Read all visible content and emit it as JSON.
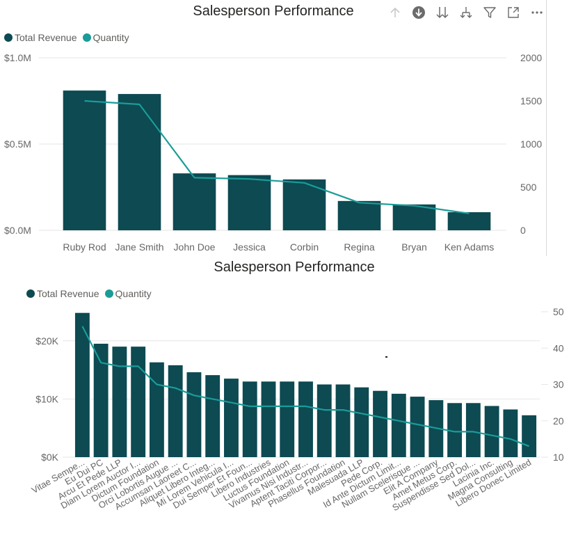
{
  "colors": {
    "bar": "#0d4a52",
    "line": "#1a9c98",
    "grid": "#e6e6e6",
    "axis_text": "#666666",
    "title": "#252423"
  },
  "toolbar": {
    "icons": [
      "drill-up-icon",
      "drill-down-on-icon",
      "expand-all-icon",
      "expand-next-level-icon",
      "filter-icon",
      "focus-mode-icon",
      "more-options-icon"
    ]
  },
  "chart_data": [
    {
      "type": "bar",
      "title": "Salesperson Performance",
      "legend": [
        "Total Revenue",
        "Quantity"
      ],
      "legend_position": "top-left",
      "categories": [
        "Ruby Rod",
        "Jane Smith",
        "John Doe",
        "Jessica",
        "Corbin",
        "Regina",
        "Bryan",
        "Ken Adams"
      ],
      "series": [
        {
          "name": "Total Revenue",
          "kind": "bar",
          "axis": "left",
          "values": [
            810000,
            790000,
            330000,
            320000,
            295000,
            170000,
            150000,
            105000
          ]
        },
        {
          "name": "Quantity",
          "kind": "line",
          "axis": "right",
          "values": [
            1500,
            1460,
            610,
            595,
            550,
            320,
            285,
            195
          ]
        }
      ],
      "y_left": {
        "ylim": [
          0,
          1000000
        ],
        "ticks": [
          0,
          500000,
          1000000
        ],
        "tick_labels": [
          "$0.0M",
          "$0.5M",
          "$1.0M"
        ]
      },
      "y_right": {
        "ylim": [
          0,
          2000
        ],
        "ticks": [
          0,
          500,
          1000,
          1500,
          2000
        ],
        "tick_labels": [
          "0",
          "500",
          "1000",
          "1500",
          "2000"
        ]
      },
      "grid": true
    },
    {
      "type": "bar",
      "title": "Salesperson Performance",
      "legend": [
        "Total Revenue",
        "Quantity"
      ],
      "legend_position": "top-left",
      "categories": [
        "Vitae Sempe...",
        "Eu Dui PC",
        "Arcu Et Pede LLP",
        "Diam Lorem Auctor I...",
        "Dictum Foundation",
        "Orci Lobortis Augue ...",
        "Accumsan Laoreet C...",
        "Aliquet Libero Integ...",
        "Mi Lorem Vehicula I...",
        "Dui Semper Et Foun...",
        "Libero Industries",
        "Luctus Foundation",
        "Vivamus Nisi Industr...",
        "Aptent Taciti Corpor...",
        "Phasellus Foundation",
        "Malesuada LLP",
        "Pede Corp.",
        "Id Ante Dictum Limit...",
        "Nullam Scelerisque ...",
        "Elit A Company",
        "Amet Metus Corp.",
        "Suspendisse Sed Dol...",
        "Lacinia Inc.",
        "Magna Consulting",
        "Libero Donec Limited"
      ],
      "series": [
        {
          "name": "Total Revenue",
          "kind": "bar",
          "axis": "left",
          "values": [
            24800,
            19500,
            19000,
            19000,
            16300,
            15800,
            14600,
            14100,
            13500,
            13000,
            13000,
            13000,
            13000,
            12500,
            12500,
            12000,
            11400,
            10900,
            10400,
            9800,
            9300,
            9300,
            8800,
            8200,
            7200
          ]
        },
        {
          "name": "Quantity",
          "kind": "line",
          "axis": "right",
          "values": [
            46,
            36,
            35,
            35,
            30,
            29,
            27,
            26,
            25,
            24,
            24,
            24,
            24,
            23,
            23,
            22,
            21,
            20,
            19,
            18,
            17,
            17,
            16,
            15,
            13
          ]
        }
      ],
      "y_left": {
        "ylim": [
          0,
          25000
        ],
        "ticks": [
          0,
          10000,
          20000
        ],
        "tick_labels": [
          "$0K",
          "$10K",
          "$20K"
        ]
      },
      "y_right": {
        "ylim": [
          10,
          50
        ],
        "ticks": [
          10,
          20,
          30,
          40,
          50
        ],
        "tick_labels": [
          "10",
          "20",
          "30",
          "40",
          "50"
        ]
      },
      "grid": true
    }
  ]
}
